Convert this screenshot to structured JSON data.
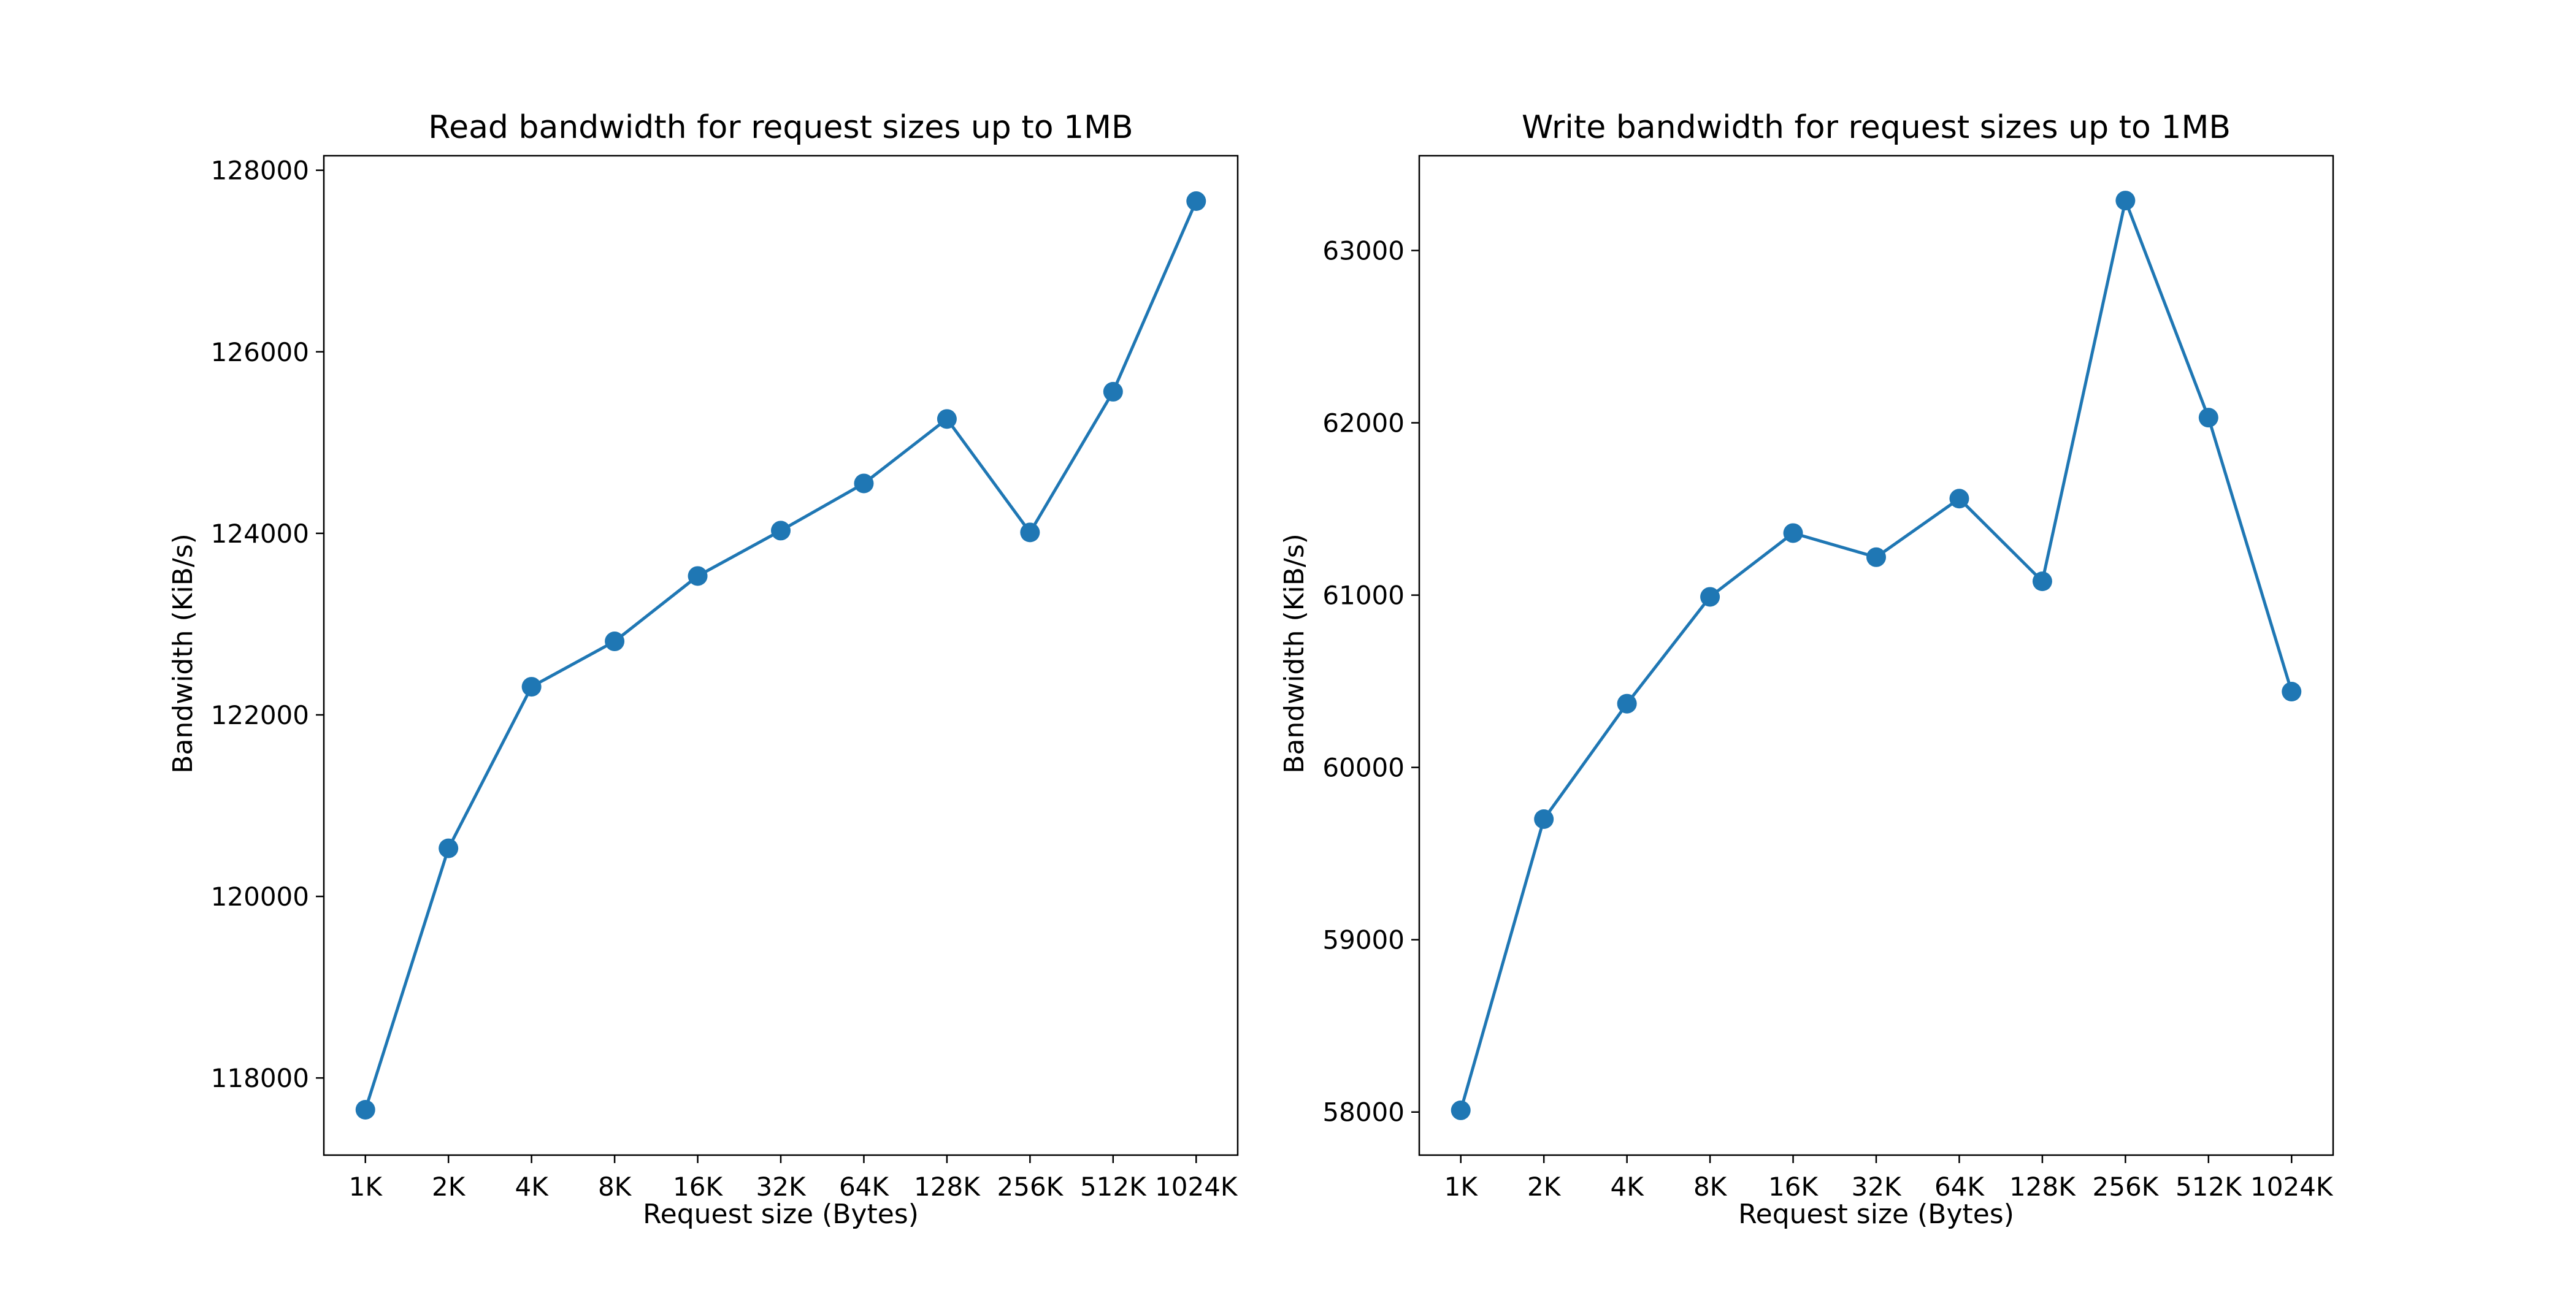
{
  "chart_data": [
    {
      "type": "line",
      "title": "Read bandwidth for request sizes up to 1MB",
      "xlabel": "Request size (Bytes)",
      "ylabel": "Bandwidth (KiB/s)",
      "categories": [
        "1K",
        "2K",
        "4K",
        "8K",
        "16K",
        "32K",
        "64K",
        "128K",
        "256K",
        "512K",
        "1024K"
      ],
      "values": [
        117650,
        120530,
        122310,
        122810,
        123530,
        124030,
        124550,
        125260,
        124010,
        125560,
        127660
      ],
      "ylim": [
        117150,
        128160
      ],
      "yticks": [
        118000,
        120000,
        122000,
        124000,
        126000,
        128000
      ],
      "color": "#1f77b4",
      "markers": true,
      "grid": false
    },
    {
      "type": "line",
      "title": "Write bandwidth for request sizes up to 1MB",
      "xlabel": "Request size (Bytes)",
      "ylabel": "Bandwidth (KiB/s)",
      "categories": [
        "1K",
        "2K",
        "4K",
        "8K",
        "16K",
        "32K",
        "64K",
        "128K",
        "256K",
        "512K",
        "1024K"
      ],
      "values": [
        58010,
        59700,
        60370,
        60990,
        61360,
        61220,
        61560,
        61080,
        63290,
        62030,
        60440
      ],
      "ylim": [
        57750,
        63550
      ],
      "yticks": [
        58000,
        59000,
        60000,
        61000,
        62000,
        63000
      ],
      "color": "#1f77b4",
      "markers": true,
      "grid": false
    }
  ]
}
